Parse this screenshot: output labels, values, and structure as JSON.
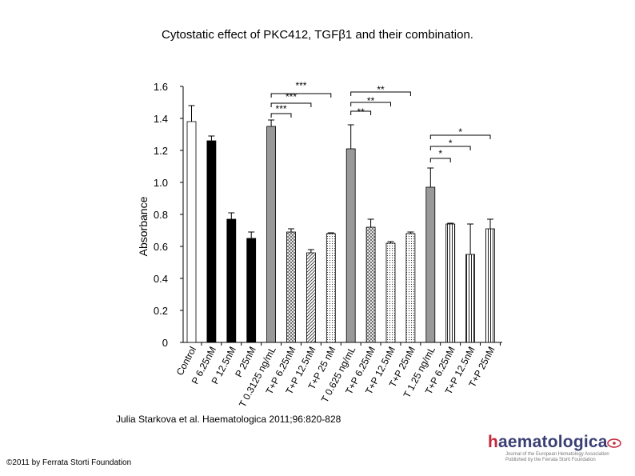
{
  "title": "Cytostatic effect of PKC412, TGFβ1 and their combination.",
  "citation": "Julia Starkova et al. Haematologica 2011;96:820-828",
  "copyright": "©2011 by Ferrata Storti Foundation",
  "logo": {
    "word_head": "h",
    "word_rest": "aematologica",
    "subtitle_1": "Journal of the European Hematology Association",
    "subtitle_2": "Published by the Ferrata Storti Foundation"
  },
  "chart_data": {
    "type": "bar",
    "title": "Cytostatic effect of PKC412, TGFβ1 and their combination.",
    "ylabel": "Absorbance",
    "xlabel": "",
    "ylim": [
      0,
      1.6
    ],
    "yticks": [
      "0",
      "0.2",
      "0.4",
      "0.6",
      "0.8",
      "1.0",
      "1.2",
      "1.4",
      "1.6"
    ],
    "grid": false,
    "categories": [
      "Control",
      "P 6.25nM",
      "P 12.5nM",
      "P 25nM",
      "T 0.3125 ng/mL",
      "T+P 6.25nM",
      "T+P 12.5nM",
      "T+P 25 nM",
      "T 0.625 ng/mL",
      "T+P 6.25nM",
      "T+P 12.5nM",
      "T+P 25nM",
      "T 1.25 ng/mL",
      "T+P 6.25nM",
      "T+P 12.5nM",
      "T+P 25nM"
    ],
    "values": [
      1.38,
      1.26,
      0.77,
      0.65,
      1.35,
      0.69,
      0.56,
      0.68,
      1.21,
      0.72,
      0.62,
      0.68,
      0.97,
      0.74,
      0.55,
      0.71
    ],
    "errors": [
      0.1,
      0.03,
      0.04,
      0.04,
      0.04,
      0.02,
      0.02,
      0.005,
      0.15,
      0.05,
      0.01,
      0.01,
      0.12,
      0.005,
      0.19,
      0.06
    ],
    "fills": [
      "white",
      "black",
      "black",
      "black",
      "gray",
      "cross",
      "diag",
      "dots",
      "gray",
      "cross",
      "dots",
      "dots",
      "gray",
      "vlines",
      "vlines",
      "vlines"
    ],
    "significance": [
      {
        "from": 4,
        "to": 7,
        "label": "***"
      },
      {
        "from": 4,
        "to": 6,
        "label": "***"
      },
      {
        "from": 4,
        "to": 5,
        "label": "***"
      },
      {
        "from": 8,
        "to": 11,
        "label": "**"
      },
      {
        "from": 8,
        "to": 10,
        "label": "**"
      },
      {
        "from": 8,
        "to": 9,
        "label": "**"
      },
      {
        "from": 12,
        "to": 15,
        "label": "*"
      },
      {
        "from": 12,
        "to": 14,
        "label": "*"
      },
      {
        "from": 12,
        "to": 13,
        "label": "*"
      }
    ]
  }
}
